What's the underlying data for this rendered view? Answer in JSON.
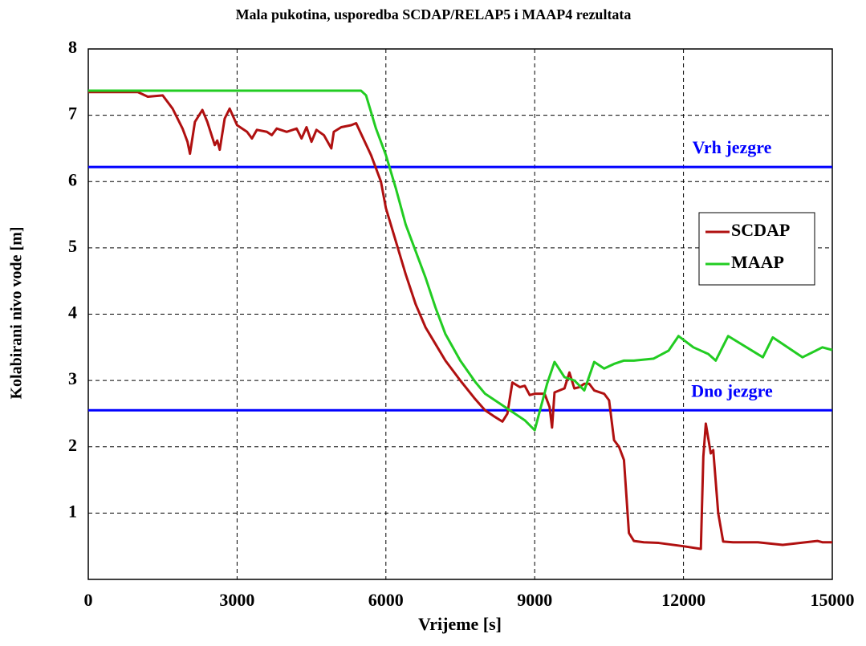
{
  "chart_data": {
    "type": "line",
    "title": "Mala pukotina, usporedba SCDAP/RELAP5 i MAAP4 rezultata",
    "xlabel": "Vrijeme [s]",
    "ylabel": "Kolabirani nivo vode [m]",
    "xlim": [
      0,
      15000
    ],
    "ylim": [
      0,
      8
    ],
    "xticks": [
      0,
      3000,
      6000,
      9000,
      12000,
      15000
    ],
    "yticks": [
      1,
      2,
      3,
      4,
      5,
      6,
      7,
      8
    ],
    "grid": true,
    "legend": "center right",
    "hlines": [
      {
        "value": 6.22,
        "label": "Vrh jezgre",
        "color": "#0000ff"
      },
      {
        "value": 2.55,
        "label": "Dno jezgre",
        "color": "#0000ff"
      }
    ],
    "series": [
      {
        "name": "SCDAP",
        "color": "#b01010",
        "x": [
          0,
          1000,
          1200,
          1500,
          1700,
          1900,
          2000,
          2050,
          2150,
          2300,
          2400,
          2550,
          2600,
          2650,
          2750,
          2850,
          3000,
          3200,
          3300,
          3400,
          3600,
          3700,
          3800,
          4000,
          4200,
          4300,
          4400,
          4500,
          4600,
          4750,
          4900,
          4950,
          5100,
          5300,
          5400,
          5500,
          5700,
          5900,
          6000,
          6200,
          6400,
          6600,
          6800,
          7000,
          7200,
          7500,
          7800,
          8000,
          8200,
          8350,
          8450,
          8550,
          8700,
          8800,
          8900,
          9000,
          9200,
          9300,
          9350,
          9400,
          9600,
          9700,
          9800,
          9900,
          10000,
          10100,
          10200,
          10400,
          10500,
          10600,
          10700,
          10800,
          10900,
          11000,
          11200,
          11500,
          12000,
          12350,
          12400,
          12450,
          12550,
          12600,
          12700,
          12800,
          13000,
          13500,
          14000,
          14700,
          14800,
          15000
        ],
        "values": [
          7.35,
          7.35,
          7.28,
          7.3,
          7.1,
          6.8,
          6.6,
          6.42,
          6.9,
          7.08,
          6.9,
          6.55,
          6.62,
          6.48,
          6.95,
          7.1,
          6.85,
          6.75,
          6.65,
          6.78,
          6.75,
          6.7,
          6.8,
          6.75,
          6.8,
          6.65,
          6.82,
          6.6,
          6.78,
          6.7,
          6.5,
          6.75,
          6.82,
          6.85,
          6.88,
          6.72,
          6.4,
          6.0,
          5.6,
          5.1,
          4.6,
          4.15,
          3.8,
          3.55,
          3.3,
          3.0,
          2.72,
          2.55,
          2.45,
          2.38,
          2.5,
          2.97,
          2.9,
          2.92,
          2.78,
          2.8,
          2.8,
          2.6,
          2.29,
          2.82,
          2.88,
          3.12,
          2.88,
          2.9,
          2.95,
          2.95,
          2.85,
          2.8,
          2.7,
          2.1,
          2.0,
          1.8,
          0.7,
          0.58,
          0.56,
          0.55,
          0.5,
          0.46,
          1.85,
          2.35,
          1.9,
          1.95,
          1.0,
          0.57,
          0.56,
          0.56,
          0.52,
          0.58,
          0.56,
          0.56
        ]
      },
      {
        "name": "MAAP",
        "color": "#22cc22",
        "x": [
          0,
          5500,
          5600,
          5800,
          6000,
          6200,
          6400,
          6600,
          6800,
          7000,
          7200,
          7500,
          7800,
          8000,
          8300,
          8600,
          8800,
          9000,
          9250,
          9400,
          9600,
          9800,
          10000,
          10200,
          10400,
          10600,
          10800,
          11000,
          11400,
          11700,
          11900,
          12200,
          12500,
          12650,
          12900,
          13600,
          13800,
          14400,
          14800,
          15000
        ],
        "values": [
          7.37,
          7.37,
          7.3,
          6.8,
          6.4,
          5.9,
          5.35,
          4.95,
          4.55,
          4.1,
          3.7,
          3.3,
          2.98,
          2.8,
          2.65,
          2.5,
          2.4,
          2.25,
          2.95,
          3.28,
          3.05,
          3.0,
          2.85,
          3.28,
          3.18,
          3.25,
          3.3,
          3.3,
          3.33,
          3.45,
          3.67,
          3.5,
          3.4,
          3.3,
          3.67,
          3.35,
          3.65,
          3.35,
          3.5,
          3.46
        ]
      }
    ]
  }
}
